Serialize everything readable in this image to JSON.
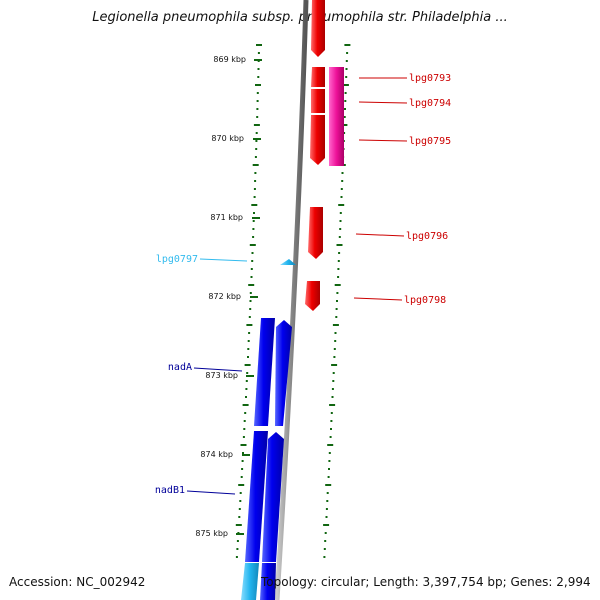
{
  "title": "Legionella pneumophila subsp. pneumophila str. Philadelphia ...",
  "footer": {
    "accession": "Accession: NC_002942",
    "stats": "Topology: circular; Length: 3,397,754 bp; Genes: 2,994"
  },
  "ticks": [
    {
      "label": "869 kbp"
    },
    {
      "label": "870 kbp"
    },
    {
      "label": "871 kbp"
    },
    {
      "label": "872 kbp"
    },
    {
      "label": "873 kbp"
    },
    {
      "label": "874 kbp"
    },
    {
      "label": "875 kbp"
    }
  ],
  "gene_labels": [
    {
      "name": "lpg0793",
      "color": "#cc0000"
    },
    {
      "name": "lpg0794",
      "color": "#cc0000"
    },
    {
      "name": "lpg0795",
      "color": "#cc0000"
    },
    {
      "name": "lpg0796",
      "color": "#cc0000"
    },
    {
      "name": "lpg0798",
      "color": "#cc0000"
    },
    {
      "name": "lpg0797",
      "color": "#33bbee"
    },
    {
      "name": "nadA",
      "color": "#000099"
    },
    {
      "name": "nadB1",
      "color": "#000099"
    }
  ],
  "colors": {
    "forward_strand": "#ee0000",
    "other_gene": "#ee1199",
    "reverse_strand": "#0000ee",
    "light_gene": "#33bbee",
    "tick": "#116611",
    "backbone": "#888888"
  }
}
